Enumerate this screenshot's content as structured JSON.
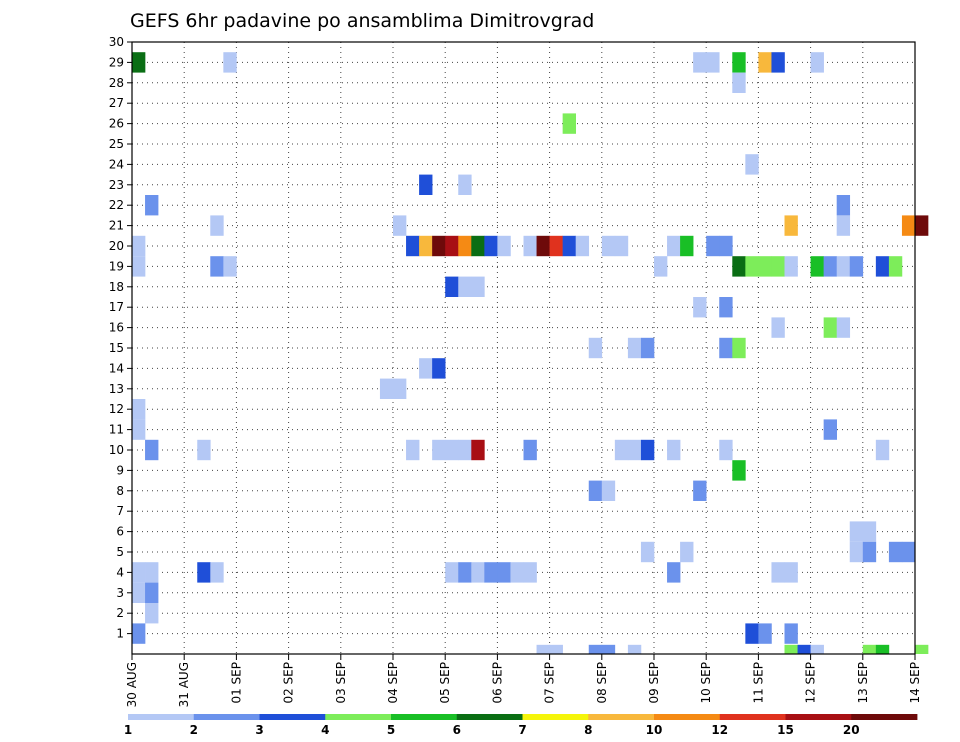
{
  "chart_data": {
    "type": "heatmap",
    "title": "GEFS 6hr padavine po ansamblima Dimitrovgrad",
    "x_tick_labels": [
      "30 AUG",
      "31 AUG",
      "01 SEP",
      "02 SEP",
      "03 SEP",
      "04 SEP",
      "05 SEP",
      "06 SEP",
      "07 SEP",
      "08 SEP",
      "09 SEP",
      "10 SEP",
      "11 SEP",
      "12 SEP",
      "13 SEP",
      "14 SEP"
    ],
    "y_tick_labels": [
      "1",
      "2",
      "3",
      "4",
      "5",
      "6",
      "7",
      "8",
      "9",
      "10",
      "11",
      "12",
      "13",
      "14",
      "15",
      "16",
      "17",
      "18",
      "19",
      "20",
      "21",
      "22",
      "23",
      "24",
      "25",
      "26",
      "27",
      "28",
      "29",
      "30"
    ],
    "x_unit": "6h step",
    "xlim": [
      0,
      60
    ],
    "ylim": [
      0,
      30
    ],
    "grid": true,
    "colorbar_ticks": [
      "1",
      "2",
      "3",
      "4",
      "5",
      "6",
      "7",
      "8",
      "10",
      "12",
      "15",
      "20"
    ],
    "colorbar_colors": [
      "#b4c8f5",
      "#6b92ec",
      "#1f4fd8",
      "#7ded5a",
      "#19bf26",
      "#0a6e14",
      "#f5f50a",
      "#f8b83c",
      "#f58a14",
      "#e0321e",
      "#a80f14",
      "#6e0a0a"
    ],
    "cells": [
      {
        "x": 0,
        "y": 29,
        "v": 6
      },
      {
        "x": 7,
        "y": 29,
        "v": 1
      },
      {
        "x": 43,
        "y": 29,
        "v": 1
      },
      {
        "x": 44,
        "y": 29,
        "v": 1
      },
      {
        "x": 46,
        "y": 29,
        "v": 5
      },
      {
        "x": 48,
        "y": 29,
        "v": 8
      },
      {
        "x": 49,
        "y": 29,
        "v": 3
      },
      {
        "x": 52,
        "y": 29,
        "v": 1
      },
      {
        "x": 46,
        "y": 28,
        "v": 1
      },
      {
        "x": 33,
        "y": 26,
        "v": 4
      },
      {
        "x": 47,
        "y": 24,
        "v": 1
      },
      {
        "x": 22,
        "y": 23,
        "v": 3
      },
      {
        "x": 25,
        "y": 23,
        "v": 1
      },
      {
        "x": 1,
        "y": 22,
        "v": 2
      },
      {
        "x": 54,
        "y": 22,
        "v": 2
      },
      {
        "x": 6,
        "y": 21,
        "v": 1
      },
      {
        "x": 20,
        "y": 21,
        "v": 1
      },
      {
        "x": 50,
        "y": 21,
        "v": 8
      },
      {
        "x": 54,
        "y": 21,
        "v": 1
      },
      {
        "x": 59,
        "y": 21,
        "v": 10
      },
      {
        "x": 60,
        "y": 21,
        "v": 20
      },
      {
        "x": 0,
        "y": 20,
        "v": 1
      },
      {
        "x": 21,
        "y": 20,
        "v": 3
      },
      {
        "x": 22,
        "y": 20,
        "v": 8
      },
      {
        "x": 23,
        "y": 20,
        "v": 20
      },
      {
        "x": 24,
        "y": 20,
        "v": 15
      },
      {
        "x": 25,
        "y": 20,
        "v": 10
      },
      {
        "x": 26,
        "y": 20,
        "v": 6
      },
      {
        "x": 27,
        "y": 20,
        "v": 3
      },
      {
        "x": 28,
        "y": 20,
        "v": 1
      },
      {
        "x": 30,
        "y": 20,
        "v": 1
      },
      {
        "x": 31,
        "y": 20,
        "v": 20
      },
      {
        "x": 32,
        "y": 20,
        "v": 12
      },
      {
        "x": 33,
        "y": 20,
        "v": 3
      },
      {
        "x": 34,
        "y": 20,
        "v": 1
      },
      {
        "x": 36,
        "y": 20,
        "v": 1
      },
      {
        "x": 37,
        "y": 20,
        "v": 1
      },
      {
        "x": 41,
        "y": 20,
        "v": 1
      },
      {
        "x": 42,
        "y": 20,
        "v": 5
      },
      {
        "x": 44,
        "y": 20,
        "v": 2
      },
      {
        "x": 45,
        "y": 20,
        "v": 2
      },
      {
        "x": 0,
        "y": 19,
        "v": 1
      },
      {
        "x": 6,
        "y": 19,
        "v": 2
      },
      {
        "x": 7,
        "y": 19,
        "v": 1
      },
      {
        "x": 40,
        "y": 19,
        "v": 1
      },
      {
        "x": 46,
        "y": 19,
        "v": 6
      },
      {
        "x": 47,
        "y": 19,
        "v": 4
      },
      {
        "x": 48,
        "y": 19,
        "v": 4
      },
      {
        "x": 49,
        "y": 19,
        "v": 4
      },
      {
        "x": 50,
        "y": 19,
        "v": 1
      },
      {
        "x": 52,
        "y": 19,
        "v": 5
      },
      {
        "x": 53,
        "y": 19,
        "v": 2
      },
      {
        "x": 54,
        "y": 19,
        "v": 1
      },
      {
        "x": 55,
        "y": 19,
        "v": 2
      },
      {
        "x": 57,
        "y": 19,
        "v": 3
      },
      {
        "x": 58,
        "y": 19,
        "v": 4
      },
      {
        "x": 24,
        "y": 18,
        "v": 3
      },
      {
        "x": 25,
        "y": 18,
        "v": 1
      },
      {
        "x": 26,
        "y": 18,
        "v": 1
      },
      {
        "x": 43,
        "y": 17,
        "v": 1
      },
      {
        "x": 45,
        "y": 17,
        "v": 2
      },
      {
        "x": 49,
        "y": 16,
        "v": 1
      },
      {
        "x": 53,
        "y": 16,
        "v": 4
      },
      {
        "x": 54,
        "y": 16,
        "v": 1
      },
      {
        "x": 35,
        "y": 15,
        "v": 1
      },
      {
        "x": 38,
        "y": 15,
        "v": 1
      },
      {
        "x": 39,
        "y": 15,
        "v": 2
      },
      {
        "x": 45,
        "y": 15,
        "v": 2
      },
      {
        "x": 46,
        "y": 15,
        "v": 4
      },
      {
        "x": 22,
        "y": 14,
        "v": 1
      },
      {
        "x": 23,
        "y": 14,
        "v": 3
      },
      {
        "x": 19,
        "y": 13,
        "v": 1
      },
      {
        "x": 20,
        "y": 13,
        "v": 1
      },
      {
        "x": 0,
        "y": 12,
        "v": 1
      },
      {
        "x": 0,
        "y": 11,
        "v": 1
      },
      {
        "x": 53,
        "y": 11,
        "v": 2
      },
      {
        "x": 1,
        "y": 10,
        "v": 2
      },
      {
        "x": 5,
        "y": 10,
        "v": 1
      },
      {
        "x": 21,
        "y": 10,
        "v": 1
      },
      {
        "x": 23,
        "y": 10,
        "v": 1
      },
      {
        "x": 24,
        "y": 10,
        "v": 1
      },
      {
        "x": 25,
        "y": 10,
        "v": 1
      },
      {
        "x": 26,
        "y": 10,
        "v": 15
      },
      {
        "x": 30,
        "y": 10,
        "v": 2
      },
      {
        "x": 37,
        "y": 10,
        "v": 1
      },
      {
        "x": 38,
        "y": 10,
        "v": 1
      },
      {
        "x": 39,
        "y": 10,
        "v": 3
      },
      {
        "x": 41,
        "y": 10,
        "v": 1
      },
      {
        "x": 45,
        "y": 10,
        "v": 1
      },
      {
        "x": 57,
        "y": 10,
        "v": 1
      },
      {
        "x": 46,
        "y": 9,
        "v": 5
      },
      {
        "x": 35,
        "y": 8,
        "v": 2
      },
      {
        "x": 36,
        "y": 8,
        "v": 1
      },
      {
        "x": 43,
        "y": 8,
        "v": 2
      },
      {
        "x": 55,
        "y": 6,
        "v": 1
      },
      {
        "x": 56,
        "y": 6,
        "v": 1
      },
      {
        "x": 39,
        "y": 5,
        "v": 1
      },
      {
        "x": 42,
        "y": 5,
        "v": 1
      },
      {
        "x": 55,
        "y": 5,
        "v": 1
      },
      {
        "x": 56,
        "y": 5,
        "v": 2
      },
      {
        "x": 58,
        "y": 5,
        "v": 2
      },
      {
        "x": 59,
        "y": 5,
        "v": 2
      },
      {
        "x": 0,
        "y": 4,
        "v": 1
      },
      {
        "x": 1,
        "y": 4,
        "v": 1
      },
      {
        "x": 5,
        "y": 4,
        "v": 3
      },
      {
        "x": 6,
        "y": 4,
        "v": 1
      },
      {
        "x": 24,
        "y": 4,
        "v": 1
      },
      {
        "x": 25,
        "y": 4,
        "v": 2
      },
      {
        "x": 26,
        "y": 4,
        "v": 1
      },
      {
        "x": 27,
        "y": 4,
        "v": 2
      },
      {
        "x": 28,
        "y": 4,
        "v": 2
      },
      {
        "x": 29,
        "y": 4,
        "v": 1
      },
      {
        "x": 30,
        "y": 4,
        "v": 1
      },
      {
        "x": 41,
        "y": 4,
        "v": 2
      },
      {
        "x": 49,
        "y": 4,
        "v": 1
      },
      {
        "x": 50,
        "y": 4,
        "v": 1
      },
      {
        "x": 0,
        "y": 3,
        "v": 1
      },
      {
        "x": 1,
        "y": 3,
        "v": 2
      },
      {
        "x": 1,
        "y": 2,
        "v": 1
      },
      {
        "x": 0,
        "y": 1,
        "v": 2
      },
      {
        "x": 47,
        "y": 1,
        "v": 3
      },
      {
        "x": 48,
        "y": 1,
        "v": 2
      },
      {
        "x": 50,
        "y": 1,
        "v": 2
      },
      {
        "x": 31,
        "y": 0,
        "v": 1
      },
      {
        "x": 32,
        "y": 0,
        "v": 1
      },
      {
        "x": 35,
        "y": 0,
        "v": 2
      },
      {
        "x": 36,
        "y": 0,
        "v": 2
      },
      {
        "x": 38,
        "y": 0,
        "v": 1
      },
      {
        "x": 50,
        "y": 0,
        "v": 4
      },
      {
        "x": 51,
        "y": 0,
        "v": 3
      },
      {
        "x": 52,
        "y": 0,
        "v": 1
      },
      {
        "x": 56,
        "y": 0,
        "v": 4
      },
      {
        "x": 57,
        "y": 0,
        "v": 5
      },
      {
        "x": 60,
        "y": 0,
        "v": 4
      }
    ]
  }
}
